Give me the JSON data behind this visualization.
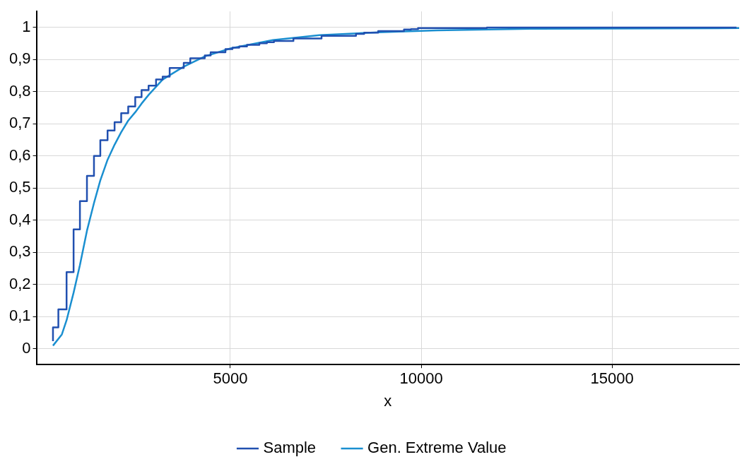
{
  "chart_data": {
    "type": "line",
    "xlabel": "x",
    "xlim": [
      -80,
      18330
    ],
    "xticks": [
      5000,
      10000,
      15000
    ],
    "ylim": [
      -0.05,
      1.05
    ],
    "yticks": [
      {
        "value": 0,
        "label": "0"
      },
      {
        "value": 0.1,
        "label": "0,1"
      },
      {
        "value": 0.2,
        "label": "0,2"
      },
      {
        "value": 0.3,
        "label": "0,3"
      },
      {
        "value": 0.4,
        "label": "0,4"
      },
      {
        "value": 0.5,
        "label": "0,5"
      },
      {
        "value": 0.6,
        "label": "0,6"
      },
      {
        "value": 0.7,
        "label": "0,7"
      },
      {
        "value": 0.8,
        "label": "0,8"
      },
      {
        "value": 0.9,
        "label": "0,9"
      },
      {
        "value": 1,
        "label": "1"
      }
    ],
    "grid": true,
    "legend": "bottom",
    "marker": "none",
    "series": [
      {
        "name": "Sample",
        "type": "step",
        "color": "#2150b0",
        "x": [
          353,
          494,
          709,
          893,
          1059,
          1243,
          1427,
          1593,
          1783,
          1967,
          2140,
          2324,
          2508,
          2674,
          2858,
          3053,
          3226,
          3410,
          3779,
          3950,
          4330,
          4484,
          4871,
          5055,
          5233,
          5436,
          5760,
          5957,
          6142,
          6652,
          7389,
          8291,
          8505,
          8873,
          9549,
          9733,
          9917,
          11720,
          18260
        ],
        "values": [
          0.023,
          0.066,
          0.122,
          0.238,
          0.371,
          0.459,
          0.538,
          0.6,
          0.649,
          0.679,
          0.705,
          0.733,
          0.754,
          0.783,
          0.805,
          0.819,
          0.838,
          0.847,
          0.874,
          0.89,
          0.904,
          0.913,
          0.923,
          0.933,
          0.937,
          0.941,
          0.946,
          0.951,
          0.954,
          0.958,
          0.966,
          0.974,
          0.98,
          0.984,
          0.989,
          0.994,
          0.995,
          0.998,
          1
        ]
      },
      {
        "name": "Gen. Extreme Value",
        "type": "line",
        "color": "#1a8fd0",
        "x": [
          353,
          586,
          709,
          893,
          1059,
          1243,
          1427,
          1593,
          1783,
          1967,
          2140,
          2324,
          2508,
          2674,
          2858,
          3226,
          3779,
          4330,
          5005,
          6110,
          7339,
          8868,
          10409,
          12863,
          16178,
          18330
        ],
        "values": [
          0.009,
          0.044,
          0.088,
          0.174,
          0.26,
          0.367,
          0.453,
          0.524,
          0.588,
          0.635,
          0.674,
          0.71,
          0.736,
          0.763,
          0.79,
          0.838,
          0.878,
          0.91,
          0.935,
          0.961,
          0.976,
          0.985,
          0.991,
          0.996,
          0.997,
          0.998
        ]
      }
    ]
  }
}
